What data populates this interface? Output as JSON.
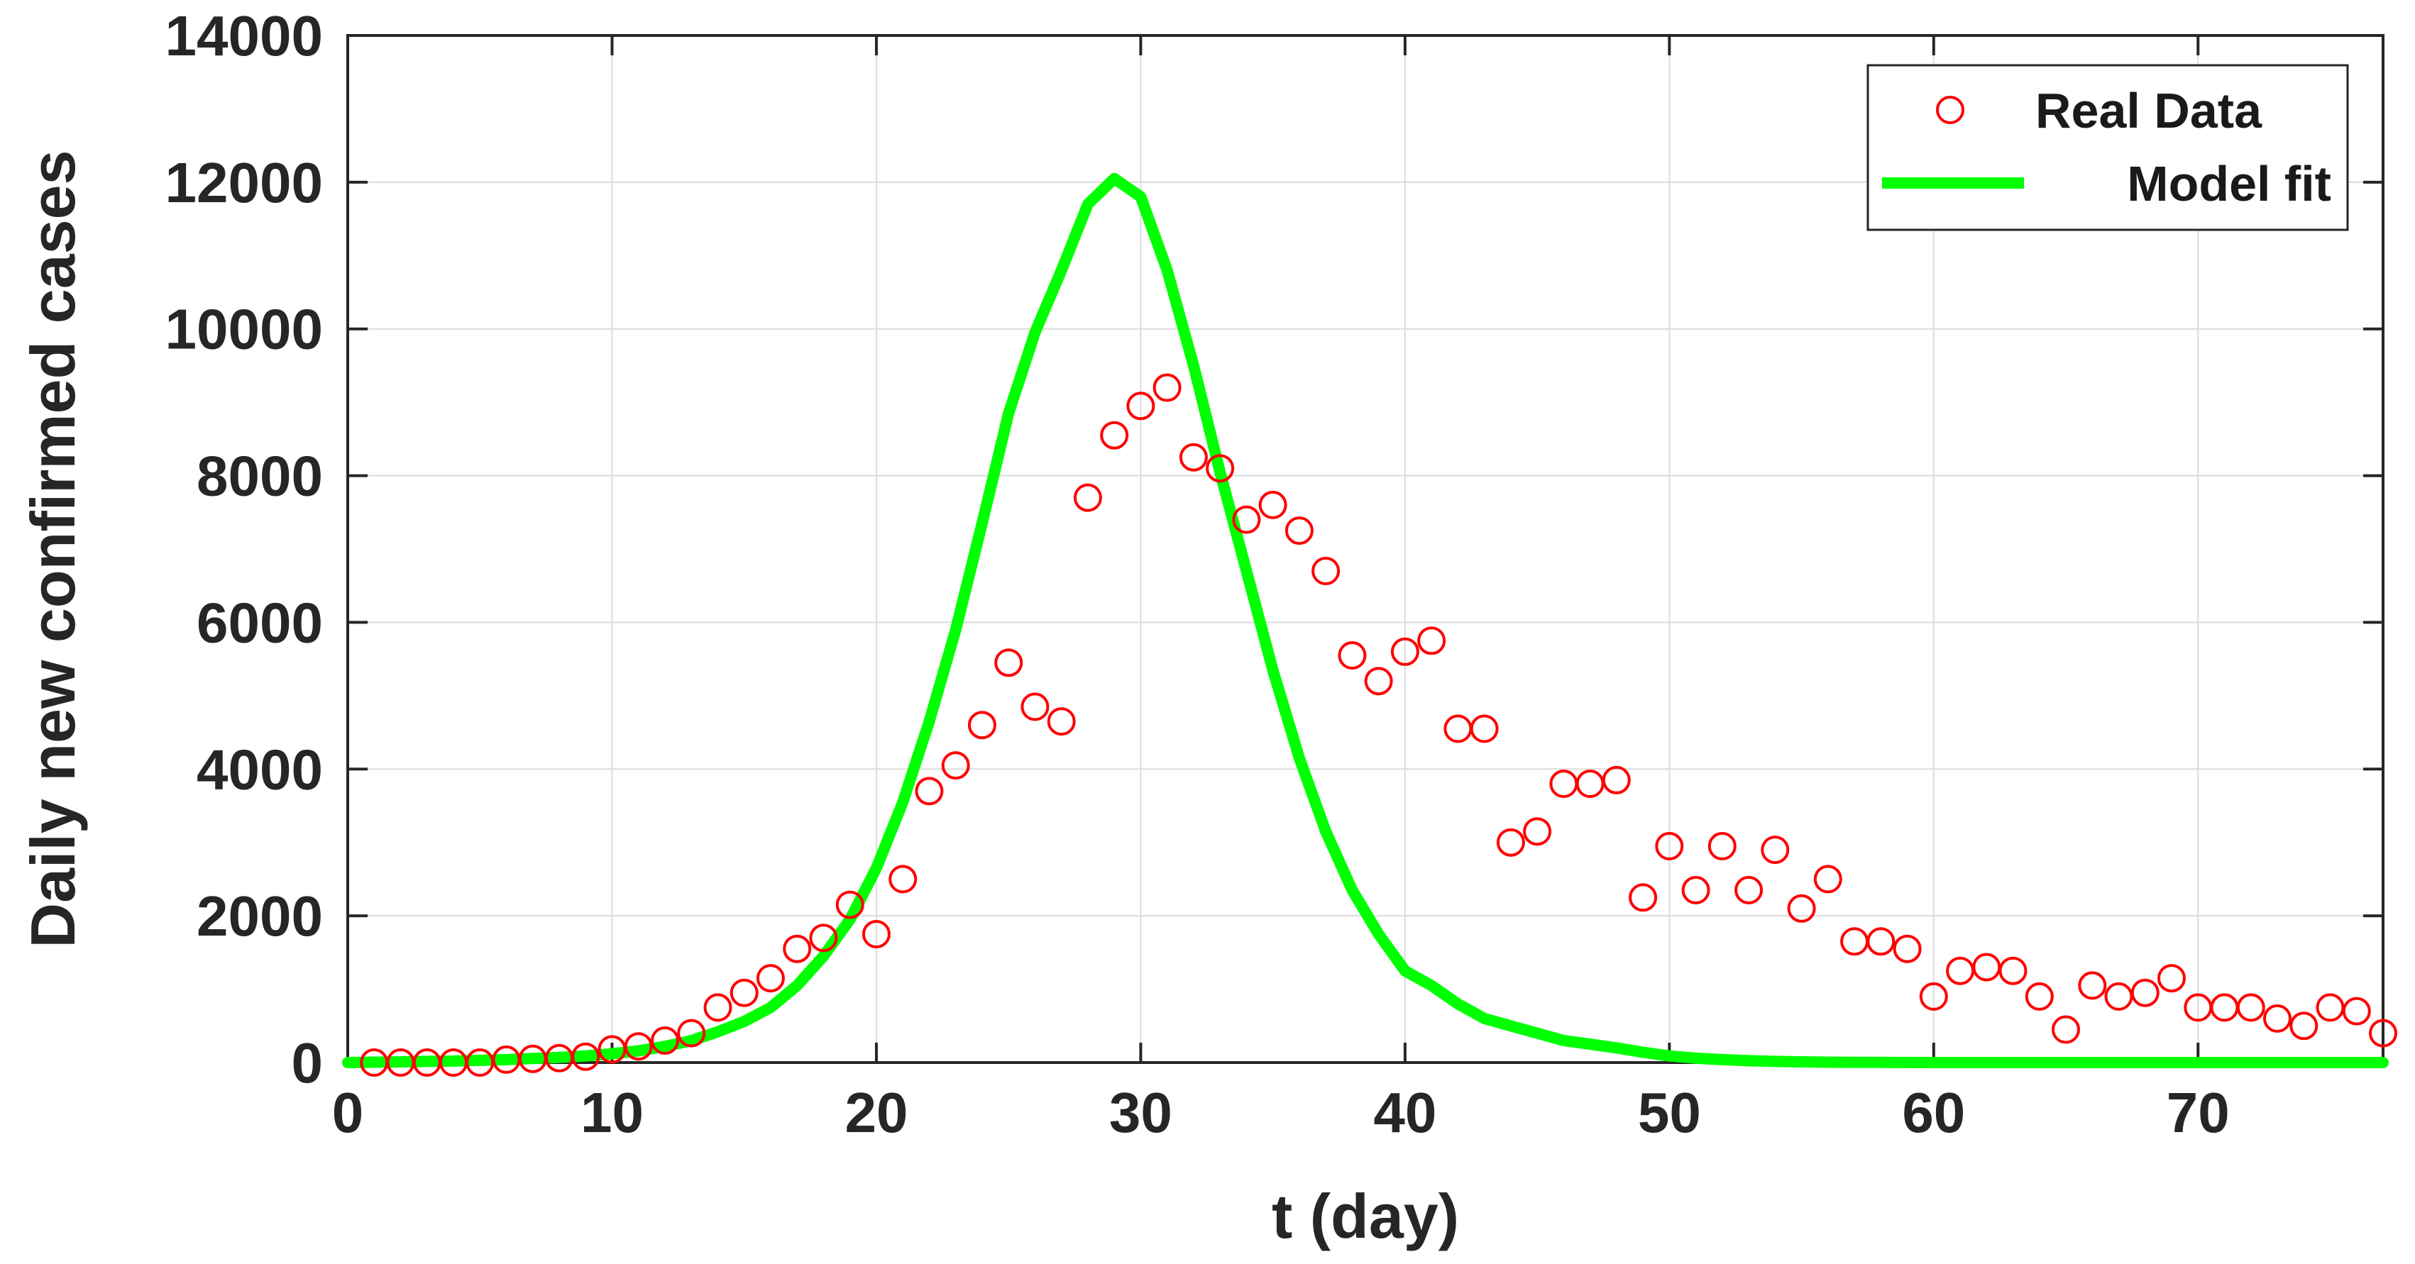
{
  "chart_data": {
    "type": "scatter+line",
    "title": "",
    "xlabel": "t (day)",
    "ylabel": "Daily new confirmed cases",
    "xlim": [
      0,
      77
    ],
    "ylim": [
      0,
      14000
    ],
    "x_ticks": [
      0,
      10,
      20,
      30,
      40,
      50,
      60,
      70
    ],
    "y_ticks": [
      0,
      2000,
      4000,
      6000,
      8000,
      10000,
      12000,
      14000
    ],
    "grid": true,
    "legend_position": "top-right",
    "colors": {
      "real_data": "#ff0000",
      "model_fit": "#00ff00",
      "axis": "#262626",
      "grid": "#dcdcdc"
    },
    "series": [
      {
        "name": "Real Data",
        "style": "markers",
        "marker": "circle-open",
        "x": [
          1,
          2,
          3,
          4,
          5,
          6,
          7,
          8,
          9,
          10,
          11,
          12,
          13,
          14,
          15,
          16,
          17,
          18,
          19,
          20,
          21,
          22,
          23,
          24,
          25,
          26,
          27,
          28,
          29,
          30,
          31,
          32,
          33,
          34,
          35,
          36,
          37,
          38,
          39,
          40,
          41,
          42,
          43,
          44,
          45,
          46,
          47,
          48,
          49,
          50,
          51,
          52,
          53,
          54,
          55,
          56,
          57,
          58,
          59,
          60,
          61,
          62,
          63,
          64,
          65,
          66,
          67,
          68,
          69,
          70,
          71,
          72,
          73,
          74,
          75,
          76,
          77
        ],
        "y": [
          0,
          0,
          0,
          0,
          0,
          40,
          50,
          60,
          80,
          180,
          220,
          300,
          400,
          750,
          950,
          1150,
          1550,
          1700,
          2150,
          1750,
          2500,
          3700,
          4050,
          4600,
          5450,
          4850,
          4650,
          7700,
          8550,
          8950,
          9200,
          8250,
          8100,
          7400,
          7600,
          7250,
          6700,
          5550,
          5200,
          5600,
          5750,
          4550,
          4550,
          3000,
          3150,
          3800,
          3800,
          3850,
          2250,
          2950,
          2350,
          2950,
          2350,
          2900,
          2100,
          2500,
          1650,
          1650,
          1550,
          900,
          1250,
          1300,
          1250,
          900,
          450,
          1050,
          900,
          950,
          1150,
          750,
          750,
          750,
          600,
          500,
          750,
          700,
          400
        ]
      },
      {
        "name": "Model fit",
        "style": "line",
        "x": [
          0,
          1,
          2,
          3,
          4,
          5,
          6,
          7,
          8,
          9,
          10,
          11,
          12,
          13,
          14,
          15,
          16,
          17,
          18,
          19,
          20,
          21,
          22,
          23,
          24,
          25,
          26,
          27,
          28,
          29,
          30,
          31,
          32,
          33,
          34,
          35,
          36,
          37,
          38,
          39,
          40,
          41,
          42,
          43,
          44,
          45,
          46,
          47,
          48,
          49,
          50,
          51,
          52,
          53,
          54,
          55,
          56,
          57,
          58,
          59,
          60,
          61,
          62,
          63,
          64,
          65,
          66,
          67,
          68,
          69,
          70,
          71,
          72,
          73,
          74,
          75,
          76,
          77
        ],
        "y": [
          0,
          5,
          10,
          15,
          20,
          30,
          40,
          55,
          70,
          90,
          120,
          160,
          220,
          300,
          420,
          560,
          750,
          1050,
          1450,
          1950,
          2650,
          3550,
          4650,
          5900,
          7350,
          8850,
          9950,
          10800,
          11700,
          12050,
          11800,
          10800,
          9500,
          8050,
          6700,
          5350,
          4150,
          3150,
          2350,
          1750,
          1250,
          1050,
          800,
          600,
          500,
          400,
          300,
          250,
          200,
          140,
          90,
          60,
          40,
          25,
          15,
          10,
          5,
          3,
          2,
          1,
          0,
          0,
          0,
          0,
          0,
          0,
          0,
          0,
          0,
          0,
          0,
          0,
          0,
          0,
          0,
          0,
          0,
          0
        ]
      }
    ]
  }
}
